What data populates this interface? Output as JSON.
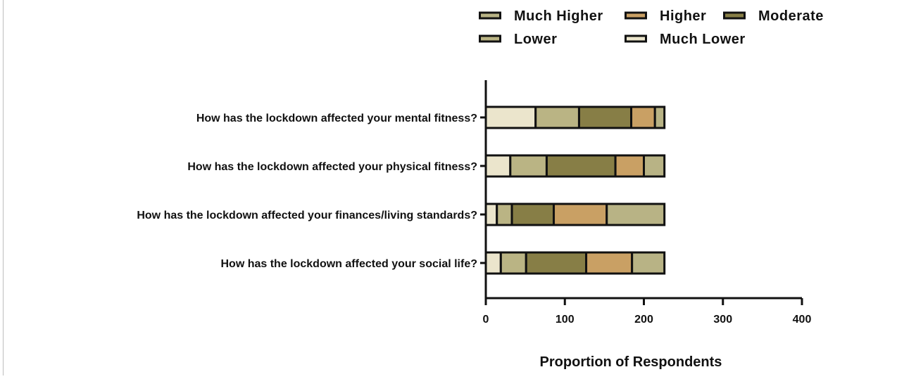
{
  "chart_data": {
    "type": "bar",
    "orientation": "horizontal",
    "stacked": true,
    "categories": [
      "How has the lockdown affected your mental fitness?",
      "How has the lockdown affected your physical fitness?",
      "How has the lockdown affected your finances/living standards?",
      "How has the lockdown affected your social life?"
    ],
    "series": [
      {
        "name": "Much Lower",
        "color": "#ebe5cc",
        "values": [
          63,
          31,
          14,
          19
        ]
      },
      {
        "name": "Lower",
        "color": "#bab484",
        "values": [
          55,
          46,
          19,
          32
        ]
      },
      {
        "name": "Moderate",
        "color": "#877e46",
        "values": [
          66,
          87,
          53,
          76
        ]
      },
      {
        "name": "Higher",
        "color": "#c9a064",
        "values": [
          30,
          36,
          67,
          58
        ]
      },
      {
        "name": "Much Higher",
        "color": "#b8b385",
        "values": [
          12,
          26,
          73,
          41
        ]
      }
    ],
    "legend": {
      "placement": "top-right",
      "order": [
        "Much Higher",
        "Higher",
        "Moderate",
        "Lower",
        "Much Lower"
      ]
    },
    "xlabel": "Proportion of Respondents",
    "ylabel": "",
    "xlim": [
      0,
      400
    ],
    "xticks": [
      "0",
      "100",
      "200",
      "300",
      "400"
    ],
    "grid": false,
    "title": ""
  }
}
